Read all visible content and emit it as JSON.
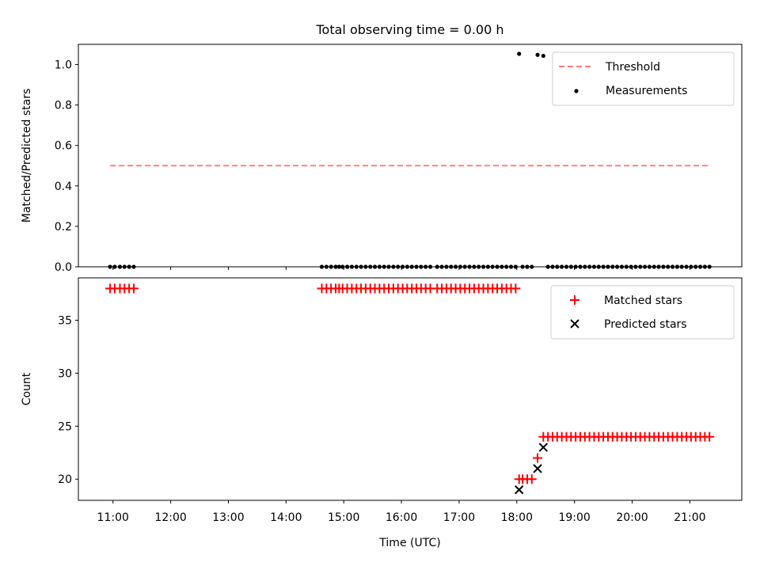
{
  "figure": {
    "title": "Total observing time = 0.00 h",
    "xlabel": "Time (UTC)"
  },
  "chart_data": [
    {
      "type": "scatter",
      "panel": "top",
      "ylabel": "Matched/Predicted stars",
      "xlim": [
        10.4,
        21.9
      ],
      "ylim": [
        0.0,
        1.1
      ],
      "yticks": [
        0.0,
        0.2,
        0.4,
        0.6,
        0.8,
        1.0
      ],
      "x_tick_labels_shown": false,
      "legend_position": "top-right",
      "series": [
        {
          "name": "Threshold",
          "kind": "dashed-line",
          "color": "#ff7f7f",
          "x": [
            10.95,
            21.33
          ],
          "y": [
            0.5,
            0.5
          ]
        },
        {
          "name": "Measurements",
          "kind": "dots",
          "color": "#000000",
          "x": [
            10.95,
            11.03,
            11.12,
            11.2,
            11.28,
            11.36,
            14.62,
            14.7,
            14.78,
            14.86,
            14.92,
            14.98,
            15.06,
            15.14,
            15.22,
            15.3,
            15.38,
            15.46,
            15.54,
            15.62,
            15.7,
            15.78,
            15.86,
            15.94,
            16.02,
            16.1,
            16.18,
            16.26,
            16.34,
            16.42,
            16.5,
            16.62,
            16.7,
            16.78,
            16.86,
            16.94,
            17.02,
            17.1,
            17.18,
            17.26,
            17.34,
            17.42,
            17.5,
            17.58,
            17.66,
            17.74,
            17.82,
            17.9,
            17.98,
            18.04,
            18.1,
            18.18,
            18.26,
            18.36,
            18.46,
            18.54,
            18.62,
            18.7,
            18.78,
            18.86,
            18.94,
            19.02,
            19.1,
            19.18,
            19.26,
            19.34,
            19.42,
            19.5,
            19.58,
            19.66,
            19.74,
            19.82,
            19.9,
            19.98,
            20.06,
            20.14,
            20.22,
            20.3,
            20.38,
            20.46,
            20.54,
            20.62,
            20.7,
            20.78,
            20.86,
            20.94,
            21.02,
            21.1,
            21.18,
            21.26,
            21.34
          ],
          "y": [
            0,
            0,
            0,
            0,
            0,
            0,
            0,
            0,
            0,
            0,
            0,
            0,
            0,
            0,
            0,
            0,
            0,
            0,
            0,
            0,
            0,
            0,
            0,
            0,
            0,
            0,
            0,
            0,
            0,
            0,
            0,
            0,
            0,
            0,
            0,
            0,
            0,
            0,
            0,
            0,
            0,
            0,
            0,
            0,
            0,
            0,
            0,
            0,
            0,
            1.053,
            0,
            0,
            0,
            1.048,
            1.043,
            0,
            0,
            0,
            0,
            0,
            0,
            0,
            0,
            0,
            0,
            0,
            0,
            0,
            0,
            0,
            0,
            0,
            0,
            0,
            0,
            0,
            0,
            0,
            0,
            0,
            0,
            0,
            0,
            0,
            0,
            0,
            0,
            0,
            0,
            0,
            0
          ]
        }
      ]
    },
    {
      "type": "scatter",
      "panel": "bottom",
      "ylabel": "Count",
      "xlim": [
        10.4,
        21.9
      ],
      "ylim": [
        18.0,
        39.0
      ],
      "yticks": [
        20,
        25,
        30,
        35
      ],
      "xticks": [
        11,
        12,
        13,
        14,
        15,
        16,
        17,
        18,
        19,
        20,
        21
      ],
      "xtick_labels": [
        "11:00",
        "12:00",
        "13:00",
        "14:00",
        "15:00",
        "16:00",
        "17:00",
        "18:00",
        "19:00",
        "20:00",
        "21:00"
      ],
      "legend_position": "top-right",
      "series": [
        {
          "name": "Matched stars",
          "marker": "+",
          "color": "#ff0000",
          "x": [
            10.95,
            11.03,
            11.12,
            11.2,
            11.28,
            11.36,
            14.62,
            14.7,
            14.78,
            14.86,
            14.92,
            14.98,
            15.06,
            15.14,
            15.22,
            15.3,
            15.38,
            15.46,
            15.54,
            15.62,
            15.7,
            15.78,
            15.86,
            15.94,
            16.02,
            16.1,
            16.18,
            16.26,
            16.34,
            16.42,
            16.5,
            16.62,
            16.7,
            16.78,
            16.86,
            16.94,
            17.02,
            17.1,
            17.18,
            17.26,
            17.34,
            17.42,
            17.5,
            17.58,
            17.66,
            17.74,
            17.82,
            17.9,
            17.98,
            18.04,
            18.1,
            18.18,
            18.26,
            18.36,
            18.46,
            18.54,
            18.62,
            18.7,
            18.78,
            18.86,
            18.94,
            19.02,
            19.1,
            19.18,
            19.26,
            19.34,
            19.42,
            19.5,
            19.58,
            19.66,
            19.74,
            19.82,
            19.9,
            19.98,
            20.06,
            20.14,
            20.22,
            20.3,
            20.38,
            20.46,
            20.54,
            20.62,
            20.7,
            20.78,
            20.86,
            20.94,
            21.02,
            21.1,
            21.18,
            21.26,
            21.34
          ],
          "y": [
            38,
            38,
            38,
            38,
            38,
            38,
            38,
            38,
            38,
            38,
            38,
            38,
            38,
            38,
            38,
            38,
            38,
            38,
            38,
            38,
            38,
            38,
            38,
            38,
            38,
            38,
            38,
            38,
            38,
            38,
            38,
            38,
            38,
            38,
            38,
            38,
            38,
            38,
            38,
            38,
            38,
            38,
            38,
            38,
            38,
            38,
            38,
            38,
            38,
            20,
            20,
            20,
            20,
            22,
            24,
            24,
            24,
            24,
            24,
            24,
            24,
            24,
            24,
            24,
            24,
            24,
            24,
            24,
            24,
            24,
            24,
            24,
            24,
            24,
            24,
            24,
            24,
            24,
            24,
            24,
            24,
            24,
            24,
            24,
            24,
            24,
            24,
            24,
            24,
            24,
            24
          ]
        },
        {
          "name": "Predicted stars",
          "marker": "x",
          "color": "#000000",
          "x": [
            18.04,
            18.36,
            18.46
          ],
          "y": [
            19,
            21,
            23
          ]
        }
      ]
    }
  ]
}
